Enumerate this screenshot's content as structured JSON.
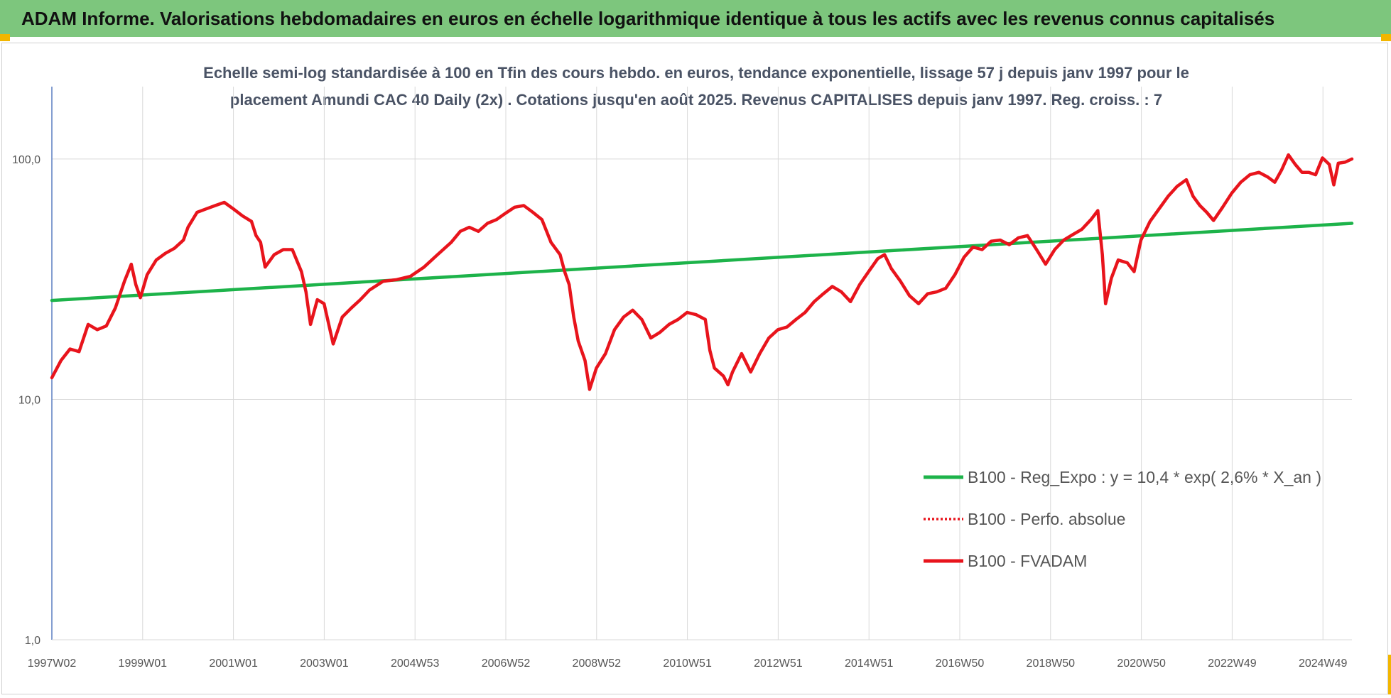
{
  "banner": {
    "title": "ADAM Informe. Valorisations hebdomadaires en euros en échelle logarithmique identique à tous les actifs avec les revenus connus capitalisés"
  },
  "chart_data": {
    "type": "line",
    "title_line1": "Echelle semi-log standardisée à 100 en Tfin des cours hebdo. en euros, tendance exponentielle, lissage 57 j depuis janv 1997 pour le",
    "title_line2": "placement Amundi CAC 40 Daily (2x) . Cotations jusqu'en août 2025. Revenus CAPITALISES depuis janv 1997. Reg. croiss. : 7",
    "y_scale": "log",
    "ylim": [
      1,
      200
    ],
    "y_ticks": [
      {
        "value": 1,
        "label": "1,0"
      },
      {
        "value": 10,
        "label": "10,0"
      },
      {
        "value": 100,
        "label": "100,0"
      }
    ],
    "x_ticks": [
      "1997W02",
      "1999W01",
      "2001W01",
      "2003W01",
      "2004W53",
      "2006W52",
      "2008W52",
      "2010W51",
      "2012W51",
      "2014W51",
      "2016W50",
      "2018W50",
      "2020W50",
      "2022W49",
      "2024W49"
    ],
    "x_range": [
      1997.0,
      2025.65
    ],
    "grid": "vertical and horizontal",
    "legend_position": "lower-right",
    "series": [
      {
        "name": "B100 - Reg_Expo : y = 10,4 * exp( 2,6% *  X_an )",
        "color": "#1db34a",
        "style": "solid",
        "points": [
          [
            1997.0,
            25.8
          ],
          [
            2025.65,
            54.0
          ]
        ]
      },
      {
        "name": "B100 - Perfo. absolue",
        "color": "#e8141c",
        "style": "dotted",
        "points": []
      },
      {
        "name": "B100 - FVADAM",
        "color": "#e8141c",
        "style": "solid",
        "points": [
          [
            1997.0,
            12.3
          ],
          [
            1997.2,
            14.5
          ],
          [
            1997.4,
            16.2
          ],
          [
            1997.6,
            15.8
          ],
          [
            1997.8,
            20.5
          ],
          [
            1998.0,
            19.5
          ],
          [
            1998.2,
            20.2
          ],
          [
            1998.4,
            24.0
          ],
          [
            1998.6,
            31.0
          ],
          [
            1998.75,
            36.5
          ],
          [
            1998.85,
            30.0
          ],
          [
            1998.95,
            26.5
          ],
          [
            1999.1,
            33.0
          ],
          [
            1999.3,
            38.0
          ],
          [
            1999.5,
            40.5
          ],
          [
            1999.7,
            42.5
          ],
          [
            1999.9,
            46.0
          ],
          [
            2000.0,
            52.0
          ],
          [
            2000.2,
            60.0
          ],
          [
            2000.4,
            62.0
          ],
          [
            2000.6,
            64.0
          ],
          [
            2000.8,
            66.0
          ],
          [
            2001.0,
            62.0
          ],
          [
            2001.2,
            58.0
          ],
          [
            2001.4,
            55.0
          ],
          [
            2001.5,
            48.0
          ],
          [
            2001.6,
            45.0
          ],
          [
            2001.7,
            35.5
          ],
          [
            2001.9,
            40.0
          ],
          [
            2002.1,
            42.0
          ],
          [
            2002.3,
            42.0
          ],
          [
            2002.5,
            34.0
          ],
          [
            2002.6,
            28.0
          ],
          [
            2002.7,
            20.5
          ],
          [
            2002.85,
            26.0
          ],
          [
            2003.0,
            25.0
          ],
          [
            2003.2,
            17.0
          ],
          [
            2003.4,
            22.0
          ],
          [
            2003.6,
            24.0
          ],
          [
            2003.8,
            26.0
          ],
          [
            2004.0,
            28.5
          ],
          [
            2004.3,
            31.0
          ],
          [
            2004.6,
            31.5
          ],
          [
            2004.9,
            32.5
          ],
          [
            2005.2,
            35.5
          ],
          [
            2005.5,
            40.0
          ],
          [
            2005.8,
            45.0
          ],
          [
            2006.0,
            50.0
          ],
          [
            2006.2,
            52.0
          ],
          [
            2006.4,
            50.0
          ],
          [
            2006.6,
            54.0
          ],
          [
            2006.8,
            56.0
          ],
          [
            2007.0,
            59.5
          ],
          [
            2007.2,
            63.0
          ],
          [
            2007.4,
            64.0
          ],
          [
            2007.6,
            60.0
          ],
          [
            2007.8,
            56.0
          ],
          [
            2008.0,
            45.0
          ],
          [
            2008.2,
            40.0
          ],
          [
            2008.3,
            34.0
          ],
          [
            2008.4,
            30.0
          ],
          [
            2008.5,
            22.0
          ],
          [
            2008.6,
            17.5
          ],
          [
            2008.75,
            14.5
          ],
          [
            2008.85,
            11.0
          ],
          [
            2009.0,
            13.5
          ],
          [
            2009.2,
            15.5
          ],
          [
            2009.4,
            19.5
          ],
          [
            2009.6,
            22.0
          ],
          [
            2009.8,
            23.5
          ],
          [
            2010.0,
            21.5
          ],
          [
            2010.2,
            18.0
          ],
          [
            2010.4,
            19.0
          ],
          [
            2010.6,
            20.5
          ],
          [
            2010.8,
            21.5
          ],
          [
            2011.0,
            23.0
          ],
          [
            2011.2,
            22.5
          ],
          [
            2011.4,
            21.5
          ],
          [
            2011.5,
            16.0
          ],
          [
            2011.6,
            13.5
          ],
          [
            2011.8,
            12.5
          ],
          [
            2011.9,
            11.5
          ],
          [
            2012.0,
            13.0
          ],
          [
            2012.2,
            15.5
          ],
          [
            2012.4,
            13.0
          ],
          [
            2012.6,
            15.5
          ],
          [
            2012.8,
            18.0
          ],
          [
            2013.0,
            19.5
          ],
          [
            2013.2,
            20.0
          ],
          [
            2013.4,
            21.5
          ],
          [
            2013.6,
            23.0
          ],
          [
            2013.8,
            25.5
          ],
          [
            2014.0,
            27.5
          ],
          [
            2014.2,
            29.5
          ],
          [
            2014.4,
            28.0
          ],
          [
            2014.6,
            25.5
          ],
          [
            2014.8,
            30.0
          ],
          [
            2015.0,
            34.0
          ],
          [
            2015.2,
            38.5
          ],
          [
            2015.35,
            40.0
          ],
          [
            2015.5,
            35.0
          ],
          [
            2015.7,
            31.0
          ],
          [
            2015.9,
            27.0
          ],
          [
            2016.1,
            25.0
          ],
          [
            2016.3,
            27.5
          ],
          [
            2016.5,
            28.0
          ],
          [
            2016.7,
            29.0
          ],
          [
            2016.9,
            33.0
          ],
          [
            2017.1,
            39.0
          ],
          [
            2017.3,
            43.0
          ],
          [
            2017.5,
            42.0
          ],
          [
            2017.7,
            45.5
          ],
          [
            2017.9,
            46.0
          ],
          [
            2018.1,
            44.0
          ],
          [
            2018.3,
            47.0
          ],
          [
            2018.5,
            48.0
          ],
          [
            2018.7,
            42.0
          ],
          [
            2018.9,
            36.5
          ],
          [
            2019.1,
            42.0
          ],
          [
            2019.3,
            46.0
          ],
          [
            2019.5,
            48.5
          ],
          [
            2019.7,
            51.0
          ],
          [
            2019.9,
            56.0
          ],
          [
            2020.05,
            61.0
          ],
          [
            2020.15,
            40.0
          ],
          [
            2020.22,
            25.0
          ],
          [
            2020.35,
            32.0
          ],
          [
            2020.5,
            38.0
          ],
          [
            2020.7,
            37.0
          ],
          [
            2020.85,
            34.0
          ],
          [
            2021.0,
            46.0
          ],
          [
            2021.2,
            55.0
          ],
          [
            2021.4,
            62.0
          ],
          [
            2021.6,
            70.0
          ],
          [
            2021.8,
            77.0
          ],
          [
            2022.0,
            82.0
          ],
          [
            2022.15,
            70.0
          ],
          [
            2022.3,
            64.0
          ],
          [
            2022.45,
            60.0
          ],
          [
            2022.6,
            55.5
          ],
          [
            2022.8,
            63.0
          ],
          [
            2023.0,
            72.0
          ],
          [
            2023.2,
            80.0
          ],
          [
            2023.4,
            86.0
          ],
          [
            2023.6,
            88.0
          ],
          [
            2023.8,
            84.0
          ],
          [
            2023.95,
            80.0
          ],
          [
            2024.1,
            90.0
          ],
          [
            2024.25,
            104.0
          ],
          [
            2024.4,
            95.0
          ],
          [
            2024.55,
            88.0
          ],
          [
            2024.7,
            88.0
          ],
          [
            2024.85,
            86.0
          ],
          [
            2025.0,
            101.0
          ],
          [
            2025.15,
            95.0
          ],
          [
            2025.25,
            78.0
          ],
          [
            2025.35,
            96.0
          ],
          [
            2025.5,
            97.0
          ],
          [
            2025.65,
            100.0
          ]
        ]
      }
    ]
  },
  "colors": {
    "banner": "#7dc67d",
    "corner_marks": "#f2b600",
    "grid": "#d9d9d9",
    "axis": "#5b7ec2"
  }
}
